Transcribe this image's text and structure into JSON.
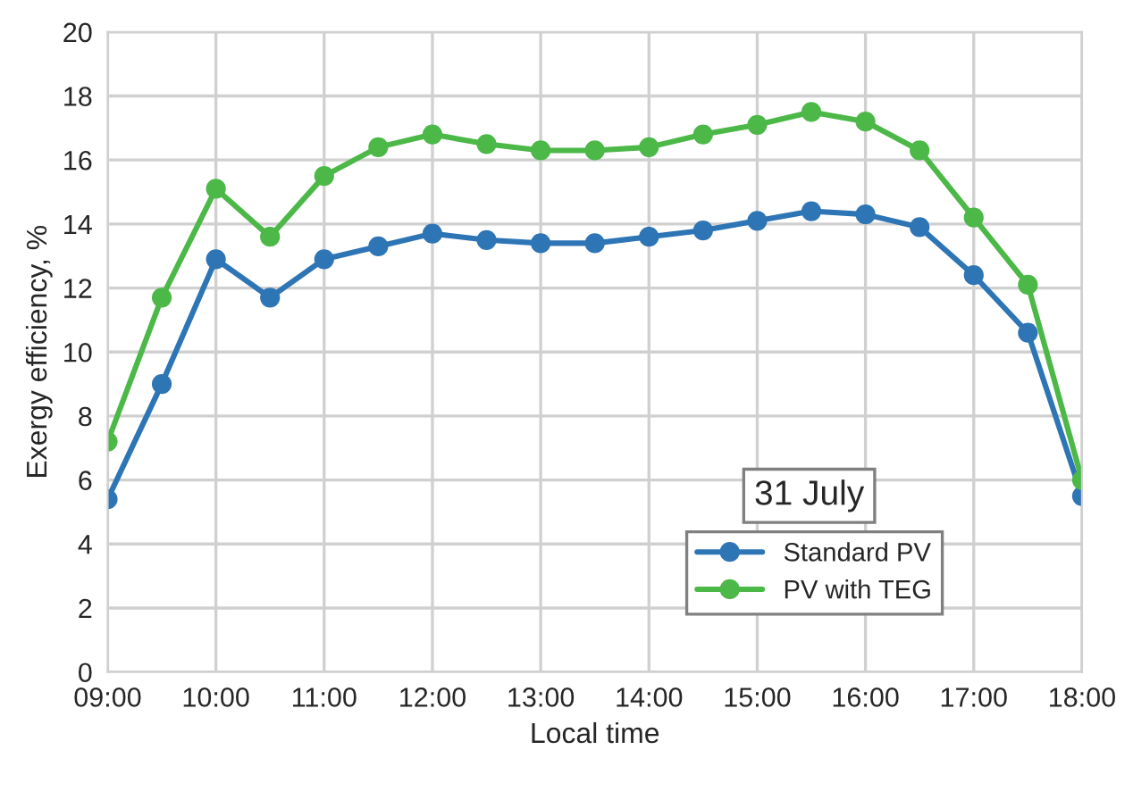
{
  "chart_data": {
    "type": "line",
    "xlabel": "Local time",
    "ylabel": "Exergy efficiency, %",
    "x": [
      9,
      9.5,
      10,
      10.5,
      11,
      11.5,
      12,
      12.5,
      13,
      13.5,
      14,
      14.5,
      15,
      15.5,
      16,
      16.5,
      17,
      17.5,
      18
    ],
    "series": [
      {
        "name": "Standard PV",
        "color": "#2e75b6",
        "values": [
          5.4,
          9.0,
          12.9,
          11.7,
          12.9,
          13.3,
          13.7,
          13.5,
          13.4,
          13.4,
          13.6,
          13.8,
          14.1,
          14.4,
          14.3,
          13.9,
          12.4,
          10.6,
          5.5
        ]
      },
      {
        "name": "PV with TEG",
        "color": "#4cb848",
        "values": [
          7.2,
          11.7,
          15.1,
          13.6,
          15.5,
          16.4,
          16.8,
          16.5,
          16.3,
          16.3,
          16.4,
          16.8,
          17.1,
          17.5,
          17.2,
          16.3,
          14.2,
          12.1,
          6.0
        ]
      }
    ],
    "xlim": [
      9,
      18
    ],
    "xticks": [
      {
        "value": 9,
        "label": "09:00"
      },
      {
        "value": 10,
        "label": "10:00"
      },
      {
        "value": 11,
        "label": "11:00"
      },
      {
        "value": 12,
        "label": "12:00"
      },
      {
        "value": 13,
        "label": "13:00"
      },
      {
        "value": 14,
        "label": "14:00"
      },
      {
        "value": 15,
        "label": "15:00"
      },
      {
        "value": 16,
        "label": "16:00"
      },
      {
        "value": 17,
        "label": "17:00"
      },
      {
        "value": 18,
        "label": "18:00"
      }
    ],
    "ylim": [
      0,
      20
    ],
    "yticks": [
      0,
      2,
      4,
      6,
      8,
      10,
      12,
      14,
      16,
      18,
      20
    ],
    "annotations": [
      "31 July"
    ],
    "grid": true,
    "legend": "bottom right",
    "marker": "circle",
    "line_style": "solid"
  }
}
